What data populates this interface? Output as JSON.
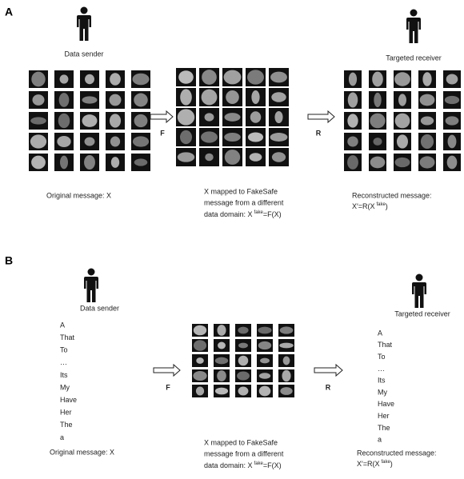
{
  "panel_a": {
    "label": "A",
    "sender": "Data sender",
    "receiver": "Targeted receiver",
    "encode_op": "F",
    "decode_op": "R",
    "original_caption": "Original message: X",
    "mapped_caption": [
      "X mapped to FakeSafe",
      "message from a different"
    ],
    "mapped_formula": {
      "base": "data domain:  X",
      "sup": "fake",
      "rest": "=F(X)"
    },
    "reconstructed_caption": "Reconstructed message:",
    "reconstructed_formula": {
      "base": "X′=R(X",
      "sup": "fake",
      "rest": ")"
    }
  },
  "panel_b": {
    "label": "B",
    "sender": "Data sender",
    "receiver": "Targeted receiver",
    "encode_op": "F",
    "decode_op": "R",
    "original_words": [
      "A",
      "That",
      "To",
      "…",
      "Its",
      "My",
      "Have",
      "Her",
      "The",
      "a"
    ],
    "reconstructed_words": [
      "A",
      "That",
      "To",
      "…",
      "Its",
      "My",
      "Have",
      "Her",
      "The",
      "a"
    ],
    "original_caption": "Original message: X",
    "mapped_caption": [
      "X mapped to FakeSafe",
      "message from a different"
    ],
    "mapped_formula": {
      "base": "data domain:  X",
      "sup": "fake",
      "rest": "=F(X)"
    },
    "reconstructed_caption": "Reconstructed message:",
    "reconstructed_formula": {
      "base": "X′=R(X",
      "sup": "fake",
      "rest": ")"
    }
  }
}
